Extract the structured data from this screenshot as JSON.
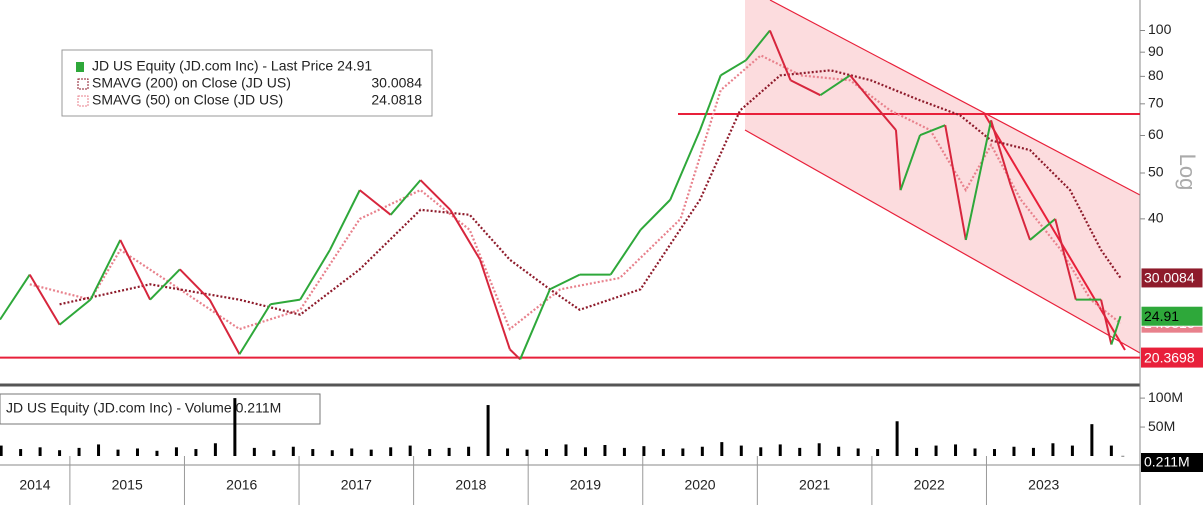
{
  "chart_data": [
    {
      "type": "price",
      "ylabel": "Log",
      "yscale": "log",
      "ylim": [
        18,
        116
      ],
      "yticks": [
        40,
        50,
        60,
        70,
        80,
        90,
        100
      ],
      "xlim": [
        2014.39,
        2024.34
      ],
      "hlines": [
        {
          "value": 20.3698,
          "color": "#e8203a",
          "label": "20.3698"
        },
        {
          "value": 66.6,
          "color": "#e8203a"
        }
      ],
      "series": [
        {
          "name": "JD US Equity (JD.com Inc) - Last Price",
          "up_color": "#2ea83a",
          "down_color": "#d7263d",
          "x": [
            2014.39,
            2014.65,
            2014.91,
            2015.18,
            2015.44,
            2015.7,
            2015.96,
            2016.22,
            2016.48,
            2016.75,
            2017.01,
            2017.27,
            2017.53,
            2017.8,
            2018.06,
            2018.32,
            2018.58,
            2018.84,
            2018.93,
            2019.19,
            2019.45,
            2019.72,
            2019.98,
            2020.24,
            2020.5,
            2020.68,
            2020.9,
            2021.11,
            2021.29,
            2021.55,
            2021.81,
            2021.99,
            2022.21,
            2022.25,
            2022.42,
            2022.64,
            2022.82,
            2023.04,
            2023.21,
            2023.38,
            2023.6,
            2023.78,
            2024.0,
            2024.09,
            2024.17
          ],
          "values": [
            24.5,
            30.5,
            23.9,
            27,
            36.1,
            27,
            31.3,
            27,
            20.7,
            26.4,
            27,
            34.4,
            46,
            40.8,
            48.3,
            41.8,
            32.8,
            21.2,
            20.2,
            28.4,
            30.5,
            30.5,
            37.9,
            43.9,
            61.6,
            80.4,
            86.5,
            100,
            78.5,
            73,
            80.4,
            71.2,
            61.6,
            46,
            60.1,
            63.1,
            36.1,
            64.6,
            47.2,
            36.1,
            40,
            27,
            27,
            21.7,
            24.91
          ]
        },
        {
          "name": "SMAVG (200)  on Close (JD US)",
          "color": "#8e1b2b",
          "x": [
            2014.91,
            2015.7,
            2016.48,
            2017.01,
            2017.53,
            2018.06,
            2018.49,
            2018.84,
            2019.19,
            2019.45,
            2019.98,
            2020.5,
            2020.85,
            2021.2,
            2021.64,
            2021.99,
            2022.42,
            2022.77,
            2023.04,
            2023.38,
            2023.73,
            2024.0,
            2024.17
          ],
          "values": [
            26.4,
            29.1,
            27,
            25.1,
            31.3,
            41.8,
            40.8,
            32.8,
            28.4,
            25.7,
            28.4,
            43.9,
            67.8,
            80.4,
            82.4,
            78.5,
            71.2,
            66.2,
            58.6,
            55.9,
            46,
            34.4,
            30.0084
          ]
        },
        {
          "name": "SMAVG (50)  on Close (JD US)",
          "color": "#e8818c",
          "x": [
            2014.65,
            2015.18,
            2015.44,
            2015.96,
            2016.48,
            2017.01,
            2017.53,
            2018.06,
            2018.49,
            2018.84,
            2019.28,
            2019.8,
            2020.33,
            2020.68,
            2021.03,
            2021.38,
            2021.81,
            2022.16,
            2022.51,
            2022.82,
            2023.04,
            2023.3,
            2023.65,
            2023.91,
            2024.17
          ],
          "values": [
            29.1,
            27,
            34.4,
            28.4,
            23.4,
            25.7,
            40,
            46,
            37.9,
            23.4,
            28.4,
            30,
            40,
            74.8,
            88.6,
            80.4,
            78.5,
            67.8,
            61.6,
            46,
            57.3,
            43.9,
            34.4,
            27,
            24.0818
          ]
        }
      ]
    },
    {
      "type": "bar",
      "title": "JD US Equity (JD.com Inc) - Volume",
      "color": "#000000",
      "ylim": [
        0,
        114
      ],
      "yticks": [
        {
          "value": 50,
          "label": "50M"
        },
        {
          "value": 100,
          "label": "100M"
        }
      ],
      "xlim": [
        2014.39,
        2024.34
      ],
      "xticks": [
        2015,
        2016,
        2017,
        2018,
        2019,
        2020,
        2021,
        2022,
        2023
      ],
      "x": [
        2014.4,
        2014.57,
        2014.74,
        2014.91,
        2015.08,
        2015.25,
        2015.42,
        2015.59,
        2015.76,
        2015.93,
        2016.1,
        2016.27,
        2016.44,
        2016.61,
        2016.78,
        2016.95,
        2017.12,
        2017.29,
        2017.46,
        2017.63,
        2017.8,
        2017.97,
        2018.14,
        2018.31,
        2018.48,
        2018.65,
        2018.82,
        2018.99,
        2019.16,
        2019.33,
        2019.5,
        2019.67,
        2019.84,
        2020.01,
        2020.18,
        2020.35,
        2020.52,
        2020.69,
        2020.86,
        2021.03,
        2021.2,
        2021.37,
        2021.54,
        2021.71,
        2021.88,
        2022.05,
        2022.22,
        2022.39,
        2022.56,
        2022.73,
        2022.9,
        2023.07,
        2023.24,
        2023.41,
        2023.58,
        2023.75,
        2023.92,
        2024.09,
        2024.19
      ],
      "values": [
        18,
        12,
        15,
        10,
        14,
        20,
        11,
        13,
        9,
        15,
        12,
        22,
        100,
        14,
        10,
        16,
        12,
        10,
        13,
        11,
        15,
        18,
        12,
        14,
        16,
        88,
        13,
        11,
        12,
        20,
        15,
        19,
        14,
        17,
        12,
        13,
        16,
        24,
        18,
        15,
        20,
        14,
        22,
        16,
        13,
        12,
        60,
        14,
        18,
        20,
        13,
        12,
        16,
        14,
        22,
        18,
        55,
        18,
        0.211
      ],
      "value_labels": [
        null,
        null,
        null,
        null,
        null,
        null,
        null,
        null,
        null,
        null,
        null,
        null,
        null,
        null,
        null,
        null,
        null,
        null,
        null,
        null,
        null,
        null,
        null,
        null,
        null,
        null,
        null,
        null,
        null,
        null,
        null,
        null,
        null,
        null,
        null,
        null,
        null,
        null,
        null,
        null,
        null,
        null,
        null,
        null,
        null,
        null,
        null,
        null,
        null,
        null,
        null,
        null,
        null,
        null,
        null,
        null,
        null,
        null,
        "0.211M"
      ]
    }
  ]
}
